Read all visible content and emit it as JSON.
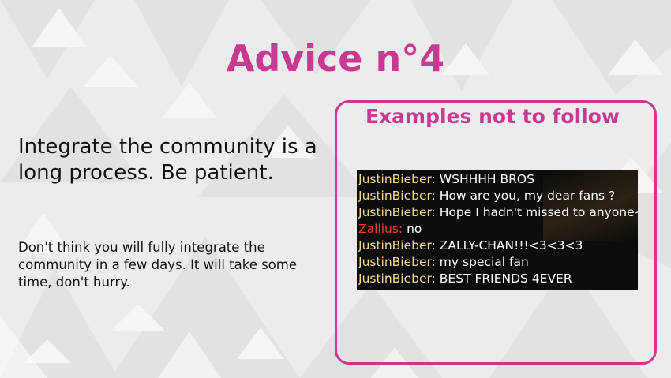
{
  "slide": {
    "title": "Advice n°4",
    "heading": "Integrate the community is a long process. Be patient.",
    "body": "Don't think you will fully integrate the community in a few days. It will take some time, don't hurry."
  },
  "examples": {
    "title": "Examples not to follow",
    "chat": [
      {
        "user": "JustinBieber:",
        "message": "WSHHHH BROS"
      },
      {
        "user": "JustinBieber:",
        "message": "How are you, my dear fans ?"
      },
      {
        "user": "JustinBieber:",
        "message": "Hope I hadn't missed to anyone~"
      },
      {
        "user": "Zallius:",
        "message": "no"
      },
      {
        "user": "JustinBieber:",
        "message": "ZALLY-CHAN!!!<3<3<3"
      },
      {
        "user": "JustinBieber:",
        "message": "my special fan"
      },
      {
        "user": "JustinBieber:",
        "message": "BEST FRIENDS 4EVER"
      }
    ]
  },
  "colors": {
    "accent": "#c8398f",
    "chat_username": "#f2d98a",
    "chat_username_alt": "#ff3a2e",
    "chat_background": "#0c0c0c"
  }
}
